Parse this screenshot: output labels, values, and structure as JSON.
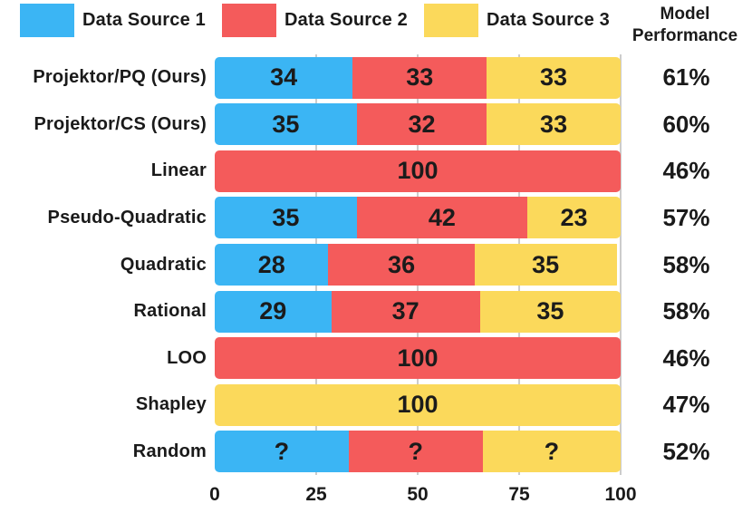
{
  "header": {
    "model_performance": "Model Performance"
  },
  "colors": {
    "source1": "#3BB5F4",
    "source2": "#F45B5B",
    "source3": "#FBD95B",
    "text": "#1a1a1a",
    "gridline": "#cccccc"
  },
  "legend": {
    "items": [
      {
        "label": "Data Source 1",
        "color_key": "source1",
        "icon": "legend-swatch-blue"
      },
      {
        "label": "Data Source 2",
        "color_key": "source2",
        "icon": "legend-swatch-red"
      },
      {
        "label": "Data Source 3",
        "color_key": "source3",
        "icon": "legend-swatch-yellow"
      }
    ]
  },
  "chart_data": {
    "type": "bar",
    "orientation": "horizontal",
    "stacked": true,
    "title": "",
    "xlabel": "",
    "ylabel": "",
    "xlim": [
      0,
      100
    ],
    "x_ticks": [
      0,
      25,
      50,
      75,
      100
    ],
    "grid": "vertical-lines-at-25-50-75-100",
    "legend_position": "top",
    "legend_entries": [
      "Data Source 1",
      "Data Source 2",
      "Data Source 3"
    ],
    "right_column_header": "Model Performance",
    "rows": [
      {
        "label": "Projektor/PQ (Ours)",
        "performance": "61%",
        "segments": [
          {
            "source": "Data Source 1",
            "color_key": "source1",
            "display": "34",
            "value": 34
          },
          {
            "source": "Data Source 2",
            "color_key": "source2",
            "display": "33",
            "value": 33
          },
          {
            "source": "Data Source 3",
            "color_key": "source3",
            "display": "33",
            "value": 33
          }
        ]
      },
      {
        "label": "Projektor/CS (Ours)",
        "performance": "60%",
        "segments": [
          {
            "source": "Data Source 1",
            "color_key": "source1",
            "display": "35",
            "value": 35
          },
          {
            "source": "Data Source 2",
            "color_key": "source2",
            "display": "32",
            "value": 32
          },
          {
            "source": "Data Source 3",
            "color_key": "source3",
            "display": "33",
            "value": 33
          }
        ]
      },
      {
        "label": "Linear",
        "performance": "46%",
        "segments": [
          {
            "source": "Data Source 2",
            "color_key": "source2",
            "display": "100",
            "value": 100
          }
        ]
      },
      {
        "label": "Pseudo-Quadratic",
        "performance": "57%",
        "segments": [
          {
            "source": "Data Source 1",
            "color_key": "source1",
            "display": "35",
            "value": 35
          },
          {
            "source": "Data Source 2",
            "color_key": "source2",
            "display": "42",
            "value": 42
          },
          {
            "source": "Data Source 3",
            "color_key": "source3",
            "display": "23",
            "value": 23
          }
        ]
      },
      {
        "label": "Quadratic",
        "performance": "58%",
        "segments": [
          {
            "source": "Data Source 1",
            "color_key": "source1",
            "display": "28",
            "value": 28
          },
          {
            "source": "Data Source 2",
            "color_key": "source2",
            "display": "36",
            "value": 36
          },
          {
            "source": "Data Source 3",
            "color_key": "source3",
            "display": "35",
            "value": 35
          }
        ]
      },
      {
        "label": "Rational",
        "performance": "58%",
        "segments": [
          {
            "source": "Data Source 1",
            "color_key": "source1",
            "display": "29",
            "value": 29
          },
          {
            "source": "Data Source 2",
            "color_key": "source2",
            "display": "37",
            "value": 37
          },
          {
            "source": "Data Source 3",
            "color_key": "source3",
            "display": "35",
            "value": 35
          }
        ]
      },
      {
        "label": "LOO",
        "performance": "46%",
        "segments": [
          {
            "source": "Data Source 2",
            "color_key": "source2",
            "display": "100",
            "value": 100
          }
        ]
      },
      {
        "label": "Shapley",
        "performance": "47%",
        "segments": [
          {
            "source": "Data Source 3",
            "color_key": "source3",
            "display": "100",
            "value": 100
          }
        ]
      },
      {
        "label": "Random",
        "performance": "52%",
        "segments": [
          {
            "source": "Data Source 1",
            "color_key": "source1",
            "display": "?",
            "value": 33
          },
          {
            "source": "Data Source 2",
            "color_key": "source2",
            "display": "?",
            "value": 33
          },
          {
            "source": "Data Source 3",
            "color_key": "source3",
            "display": "?",
            "value": 34
          }
        ]
      }
    ]
  }
}
